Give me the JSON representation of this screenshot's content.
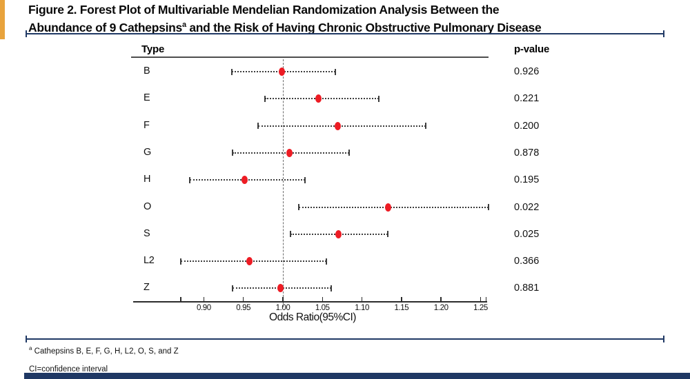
{
  "figure": {
    "title_line1": "Figure 2. Forest Plot of Multivariable Mendelian Randomization Analysis Between the",
    "title_line2_pre": "Abundance of 9 Cathepsins",
    "title_sup": "a",
    "title_line2_post": " and the Risk of Having Chronic Obstructive Pulmonary Disease"
  },
  "footnotes": {
    "note_a_sup": "a",
    "note_a_text": " Cathepsins B, E, F, G, H, L2, O, S, and Z",
    "note_ci": "CI=confidence interval"
  },
  "colors": {
    "navy": "#1f3864",
    "orange": "#e8a33d",
    "point_red": "#ed1c24"
  },
  "chart_data": {
    "type": "forest",
    "columns": {
      "type_header": "Type",
      "p_header": "p-value"
    },
    "xlabel": "Odds Ratio(95%CI)",
    "ref_line": 1.0,
    "x_ticks": [
      0.9,
      0.95,
      1.0,
      1.05,
      1.1,
      1.15,
      1.2,
      1.25
    ],
    "x_tick_labels": [
      "0.90",
      "0.95",
      "1.00",
      "1.05",
      "1.10",
      "1.15",
      "1.20",
      "1.25"
    ],
    "x_range": [
      0.871,
      1.257
    ],
    "rows": [
      {
        "type": "B",
        "or": 0.999,
        "ci_low": 0.935,
        "ci_high": 1.066,
        "p_value": "0.926"
      },
      {
        "type": "E",
        "or": 1.045,
        "ci_low": 0.977,
        "ci_high": 1.121,
        "p_value": "0.221"
      },
      {
        "type": "F",
        "or": 1.069,
        "ci_low": 0.969,
        "ci_high": 1.181,
        "p_value": "0.200"
      },
      {
        "type": "G",
        "or": 1.008,
        "ci_low": 0.936,
        "ci_high": 1.084,
        "p_value": "0.878"
      },
      {
        "type": "H",
        "or": 0.952,
        "ci_low": 0.882,
        "ci_high": 1.028,
        "p_value": "0.195"
      },
      {
        "type": "O",
        "or": 1.133,
        "ci_low": 1.02,
        "ci_high": 1.26,
        "p_value": "0.022"
      },
      {
        "type": "S",
        "or": 1.07,
        "ci_low": 1.01,
        "ci_high": 1.133,
        "p_value": "0.025"
      },
      {
        "type": "L2",
        "or": 0.958,
        "ci_low": 0.871,
        "ci_high": 1.055,
        "p_value": "0.366"
      },
      {
        "type": "Z",
        "or": 0.997,
        "ci_low": 0.936,
        "ci_high": 1.061,
        "p_value": "0.881"
      }
    ]
  }
}
